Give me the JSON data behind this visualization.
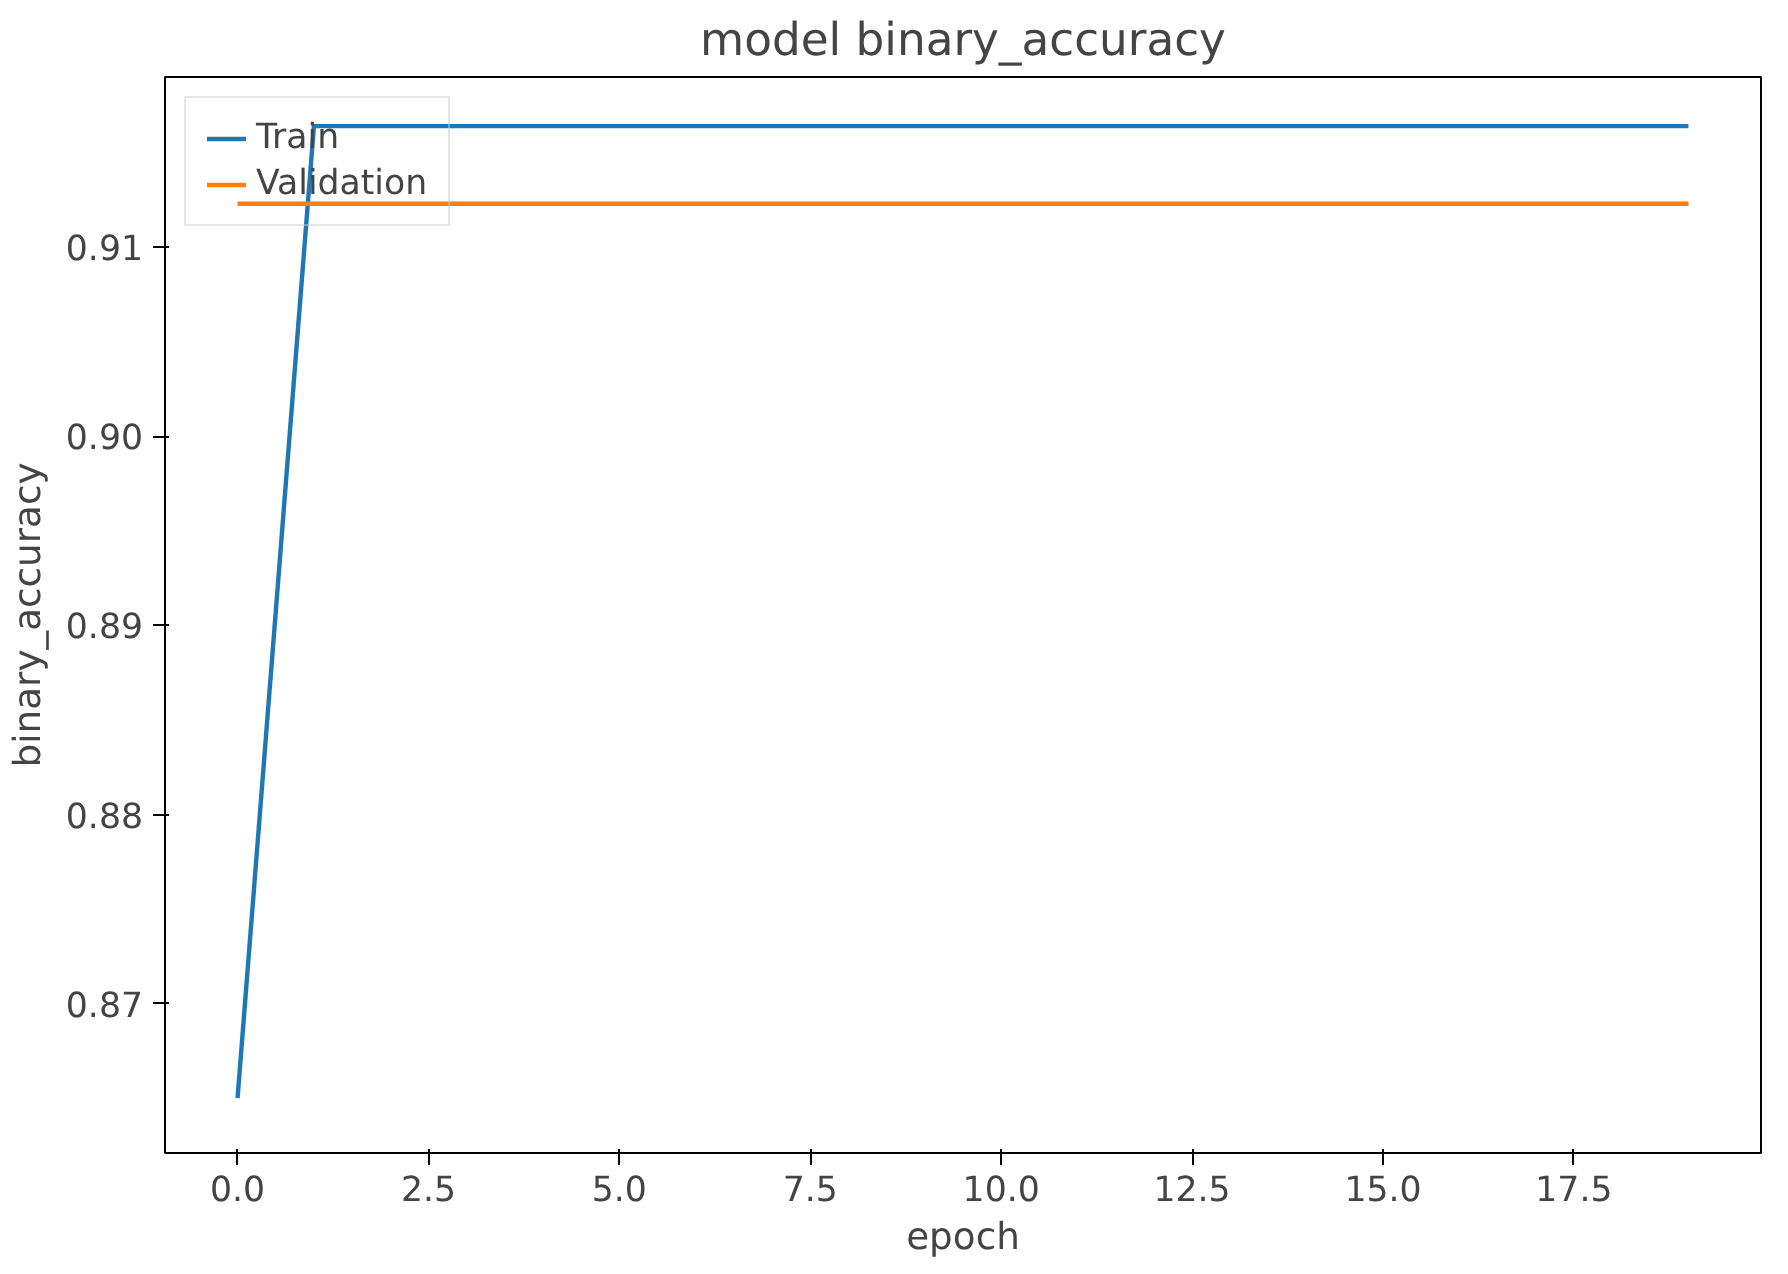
{
  "chart_data": {
    "type": "line",
    "title": "model binary_accuracy",
    "xlabel": "epoch",
    "ylabel": "binary_accuracy",
    "x": [
      0,
      1,
      2,
      3,
      4,
      5,
      6,
      7,
      8,
      9,
      10,
      11,
      12,
      13,
      14,
      15,
      16,
      17,
      18,
      19
    ],
    "series": [
      {
        "name": "Train",
        "color": "#1f77b4",
        "values": [
          0.865,
          0.9164,
          0.9164,
          0.9164,
          0.9164,
          0.9164,
          0.9164,
          0.9164,
          0.9164,
          0.9164,
          0.9164,
          0.9164,
          0.9164,
          0.9164,
          0.9164,
          0.9164,
          0.9164,
          0.9164,
          0.9164,
          0.9164
        ]
      },
      {
        "name": "Validation",
        "color": "#ff7f0e",
        "values": [
          0.9123,
          0.9123,
          0.9123,
          0.9123,
          0.9123,
          0.9123,
          0.9123,
          0.9123,
          0.9123,
          0.9123,
          0.9123,
          0.9123,
          0.9123,
          0.9123,
          0.9123,
          0.9123,
          0.9123,
          0.9123,
          0.9123,
          0.9123
        ]
      }
    ],
    "xlim": [
      -0.95,
      19.95
    ],
    "ylim": [
      0.8621,
      0.919
    ],
    "xticks": [
      {
        "value": 0,
        "label": "0.0"
      },
      2.5,
      {
        "value": 5,
        "label": "5.0"
      },
      7.5,
      {
        "value": 10,
        "label": "10.0"
      },
      12.5,
      {
        "value": 15,
        "label": "15.0"
      },
      17.5
    ],
    "yticks": [
      0.87,
      0.88,
      0.89,
      {
        "value": 0.9,
        "label": "0.90"
      },
      0.91
    ],
    "grid": false,
    "legend": "top left",
    "marker": "none",
    "line_style": "solid"
  }
}
